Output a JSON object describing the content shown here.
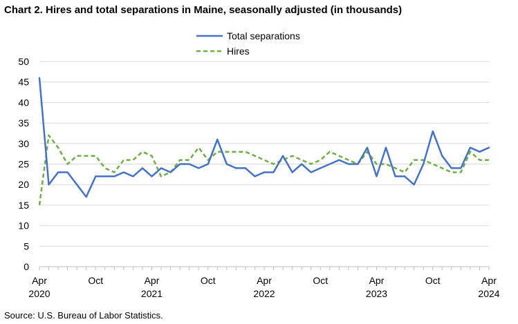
{
  "title": "Chart 2. Hires and total separations in Maine, seasonally adjusted (in thousands)",
  "source": "Source: U.S. Bureau of Labor Statistics.",
  "chart_data": {
    "type": "line",
    "title": "Chart 2. Hires and total separations in Maine, seasonally adjusted (in thousands)",
    "xlabel": "",
    "ylabel": "",
    "ylim": [
      0,
      50
    ],
    "yticks": [
      0,
      5,
      10,
      15,
      20,
      25,
      30,
      35,
      40,
      45,
      50
    ],
    "grid": "horizontal",
    "legend_position": "top-center",
    "x_start": "2020-04",
    "x_end": "2024-04",
    "x_tick_labels": [
      {
        "month": "Apr",
        "year": "2020",
        "index": 0
      },
      {
        "month": "Oct",
        "year": "",
        "index": 6
      },
      {
        "month": "Apr",
        "year": "2021",
        "index": 12
      },
      {
        "month": "Oct",
        "year": "",
        "index": 18
      },
      {
        "month": "Apr",
        "year": "2022",
        "index": 24
      },
      {
        "month": "Oct",
        "year": "",
        "index": 30
      },
      {
        "month": "Apr",
        "year": "2023",
        "index": 36
      },
      {
        "month": "Oct",
        "year": "",
        "index": 42
      },
      {
        "month": "Apr",
        "year": "2024",
        "index": 48
      }
    ],
    "series": [
      {
        "name": "Total separations",
        "color": "#4472C4",
        "style": "solid",
        "values": [
          46,
          20,
          23,
          23,
          20,
          17,
          22,
          22,
          22,
          23,
          22,
          24,
          22,
          24,
          23,
          25,
          25,
          24,
          25,
          31,
          25,
          24,
          24,
          22,
          23,
          23,
          27,
          23,
          25,
          23,
          24,
          25,
          26,
          25,
          25,
          29,
          22,
          29,
          22,
          22,
          20,
          25,
          33,
          27,
          24,
          24,
          29,
          28,
          29
        ]
      },
      {
        "name": "Hires",
        "color": "#70AD47",
        "style": "dashed",
        "values": [
          15,
          32,
          29,
          25,
          27,
          27,
          27,
          24,
          23,
          26,
          26,
          28,
          27,
          22,
          23,
          26,
          26,
          29,
          26,
          28,
          28,
          28,
          28,
          27,
          26,
          25,
          26,
          27,
          26,
          25,
          26,
          28,
          27,
          26,
          25,
          28,
          25,
          25,
          24,
          23,
          26,
          26,
          25,
          24,
          23,
          23,
          28,
          26,
          26
        ]
      }
    ]
  }
}
